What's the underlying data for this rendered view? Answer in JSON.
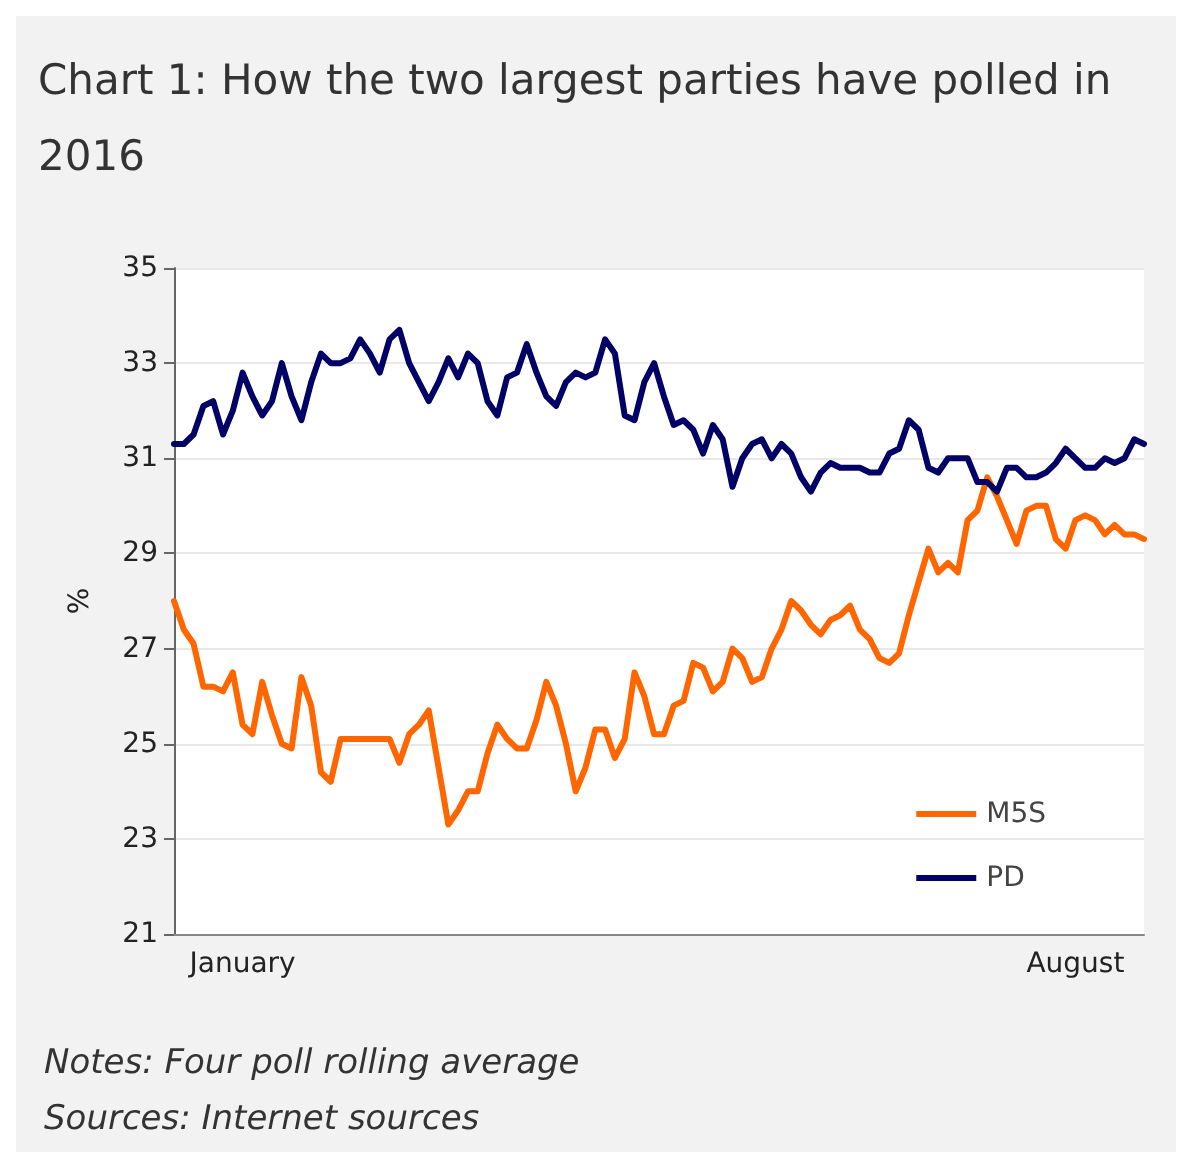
{
  "chart_data": {
    "type": "line",
    "title": "Chart 1: How the two largest parties have polled in 2016",
    "ylabel": "%",
    "categories": [
      null,
      null,
      null,
      null,
      null,
      null,
      null,
      "January",
      null,
      null,
      null,
      null,
      null,
      null,
      null,
      null,
      null,
      null,
      null,
      null,
      null,
      null,
      null,
      null,
      null,
      null,
      null,
      null,
      null,
      null,
      null,
      null,
      null,
      null,
      null,
      null,
      null,
      null,
      null,
      null,
      null,
      null,
      null,
      null,
      null,
      null,
      null,
      null,
      null,
      null,
      null,
      null,
      null,
      null,
      null,
      null,
      null,
      null,
      null,
      null,
      null,
      null,
      null,
      null,
      null,
      null,
      null,
      null,
      null,
      null,
      null,
      null,
      null,
      null,
      null,
      null,
      null,
      null,
      null,
      null,
      null,
      null,
      null,
      null,
      null,
      null,
      null,
      null,
      null,
      null,
      null,
      null,
      "August",
      null,
      null,
      null,
      null,
      null,
      null,
      null
    ],
    "series": [
      {
        "name": "M5S",
        "color": "#ff6600",
        "values": [
          28.0,
          27.4,
          27.1,
          26.2,
          26.2,
          26.1,
          26.5,
          25.4,
          25.2,
          26.3,
          25.6,
          25.0,
          24.9,
          26.4,
          25.8,
          24.4,
          24.2,
          25.1,
          25.1,
          25.1,
          25.1,
          25.1,
          25.1,
          24.6,
          25.2,
          25.4,
          25.7,
          24.5,
          23.3,
          23.6,
          24.0,
          24.0,
          24.8,
          25.4,
          25.1,
          24.9,
          24.9,
          25.5,
          26.3,
          25.8,
          25.0,
          24.0,
          24.5,
          25.3,
          25.3,
          24.7,
          25.1,
          26.5,
          26.0,
          25.2,
          25.2,
          25.8,
          25.9,
          26.7,
          26.6,
          26.1,
          26.3,
          27.0,
          26.8,
          26.3,
          26.4,
          27.0,
          27.4,
          28.0,
          27.8,
          27.5,
          27.3,
          27.6,
          27.7,
          27.9,
          27.4,
          27.2,
          26.8,
          26.7,
          26.9,
          27.7,
          28.4,
          29.1,
          28.6,
          28.8,
          28.6,
          29.7,
          29.9,
          30.6,
          30.2,
          29.7,
          29.2,
          29.9,
          30.0,
          30.0,
          29.3,
          29.1,
          29.7,
          29.8,
          29.7,
          29.4,
          29.6,
          29.4,
          29.4,
          29.3
        ]
      },
      {
        "name": "PD",
        "color": "#000066",
        "values": [
          31.3,
          31.3,
          31.5,
          32.1,
          32.2,
          31.5,
          32.0,
          32.8,
          32.3,
          31.9,
          32.2,
          33.0,
          32.3,
          31.8,
          32.6,
          33.2,
          33.0,
          33.0,
          33.1,
          33.5,
          33.2,
          32.8,
          33.5,
          33.7,
          33.0,
          32.6,
          32.2,
          32.6,
          33.1,
          32.7,
          33.2,
          33.0,
          32.2,
          31.9,
          32.7,
          32.8,
          33.4,
          32.8,
          32.3,
          32.1,
          32.6,
          32.8,
          32.7,
          32.8,
          33.5,
          33.2,
          31.9,
          31.8,
          32.6,
          33.0,
          32.3,
          31.7,
          31.8,
          31.6,
          31.1,
          31.7,
          31.4,
          30.4,
          31.0,
          31.3,
          31.4,
          31.0,
          31.3,
          31.1,
          30.6,
          30.3,
          30.7,
          30.9,
          30.8,
          30.8,
          30.8,
          30.7,
          30.7,
          31.1,
          31.2,
          31.8,
          31.6,
          30.8,
          30.7,
          31.0,
          31.0,
          31.0,
          30.5,
          30.5,
          30.3,
          30.8,
          30.8,
          30.6,
          30.6,
          30.7,
          30.9,
          31.2,
          31.0,
          30.8,
          30.8,
          31.0,
          30.9,
          31.0,
          31.4,
          31.3
        ]
      }
    ],
    "ylim": [
      21,
      35
    ],
    "yticks": [
      21,
      23,
      25,
      27,
      29,
      31,
      33,
      35
    ],
    "grid": "y",
    "legend": "bottom right",
    "marker": "none",
    "line_style": "solid",
    "annotations": [
      "Notes: Four poll rolling average",
      "Sources: Internet sources"
    ]
  }
}
